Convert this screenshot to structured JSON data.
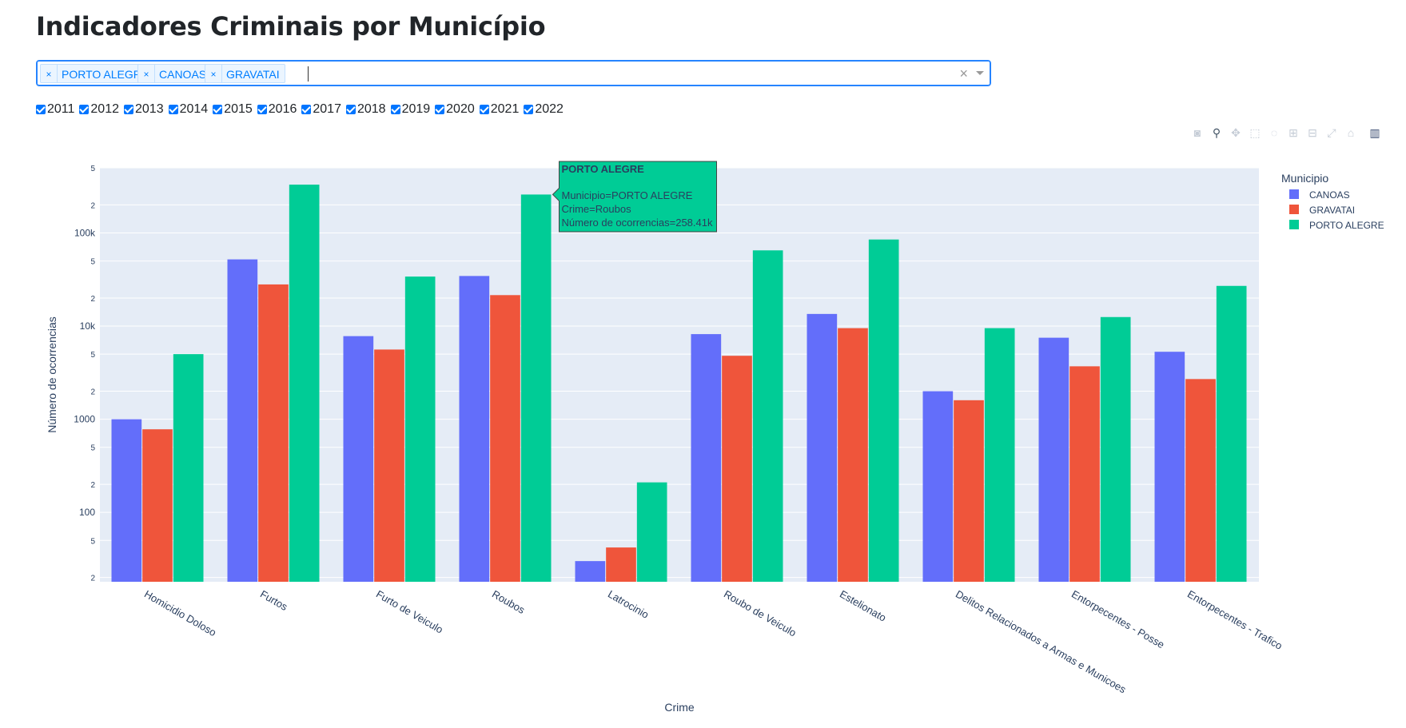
{
  "page": {
    "title": "Indicadores Criminais por Município"
  },
  "filter": {
    "selected": [
      "PORTO ALEGRE",
      "CANOAS",
      "GRAVATAI"
    ],
    "remove_symbol": "×",
    "clear_symbol": "×"
  },
  "years": [
    "2011",
    "2012",
    "2013",
    "2014",
    "2015",
    "2016",
    "2017",
    "2018",
    "2019",
    "2020",
    "2021",
    "2022"
  ],
  "modebar": [
    "camera-icon",
    "zoom-icon",
    "pan-icon",
    "box-select-icon",
    "lasso-icon",
    "zoom-in-icon",
    "zoom-out-icon",
    "autoscale-icon",
    "reset-axes-icon",
    "plotly-logo-icon"
  ],
  "colors": {
    "CANOAS": "#636efa",
    "GRAVATAI": "#ef553b",
    "PORTO ALEGRE": "#00cc96",
    "plot_bg": "#e5ecf6"
  },
  "tooltip": {
    "title": "PORTO ALEGRE",
    "lines": [
      "Municipio=PORTO ALEGRE",
      "Crime=Roubos",
      "Número de ocorrencias=258.41k"
    ]
  },
  "chart_data": {
    "type": "bar",
    "barmode": "group",
    "xlabel": "Crime",
    "ylabel": "Número de ocorrencias",
    "yscale": "log",
    "ylim": [
      18,
      500000
    ],
    "yticks": [
      {
        "v": 20,
        "t": "2"
      },
      {
        "v": 50,
        "t": "5"
      },
      {
        "v": 100,
        "t": "100"
      },
      {
        "v": 200,
        "t": "2"
      },
      {
        "v": 500,
        "t": "5"
      },
      {
        "v": 1000,
        "t": "1000"
      },
      {
        "v": 2000,
        "t": "2"
      },
      {
        "v": 5000,
        "t": "5"
      },
      {
        "v": 10000,
        "t": "10k"
      },
      {
        "v": 20000,
        "t": "2"
      },
      {
        "v": 50000,
        "t": "5"
      },
      {
        "v": 100000,
        "t": "100k"
      },
      {
        "v": 200000,
        "t": "2"
      },
      {
        "v": 500000,
        "t": "5"
      }
    ],
    "legend_title": "Municipio",
    "legend_position": "right",
    "categories": [
      "Homicidio Doloso",
      "Furtos",
      "Furto de Veiculo",
      "Roubos",
      "Latrocinio",
      "Roubo de Veiculo",
      "Estelionato",
      "Delitos Relacionados a Armas e Municoes",
      "Entorpecentes - Posse",
      "Entorpecentes - Trafico"
    ],
    "series": [
      {
        "name": "CANOAS",
        "values": [
          1000,
          52000,
          7800,
          34500,
          30,
          8200,
          13500,
          2000,
          7500,
          5300
        ]
      },
      {
        "name": "GRAVATAI",
        "values": [
          780,
          28000,
          5600,
          21500,
          42,
          4800,
          9500,
          1600,
          3700,
          2700
        ]
      },
      {
        "name": "PORTO ALEGRE",
        "values": [
          5000,
          330000,
          34000,
          258410,
          210,
          65000,
          85000,
          9500,
          12500,
          27000
        ]
      }
    ]
  }
}
